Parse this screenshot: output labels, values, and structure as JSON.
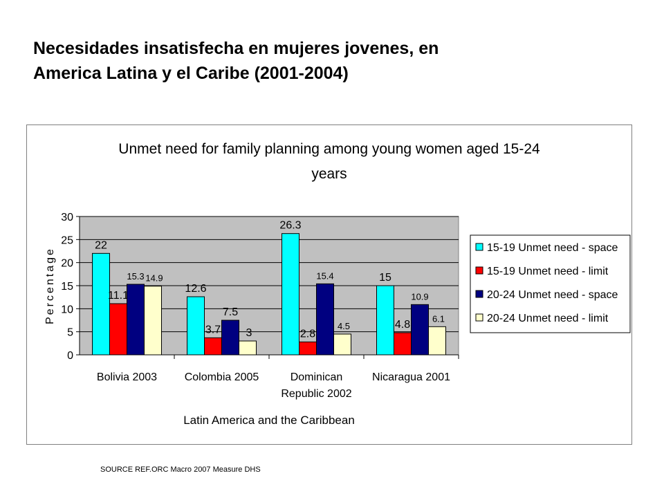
{
  "slide": {
    "title_line1": "Necesidades insatisfecha en mujeres jovenes, en",
    "title_line2": "America Latina y el Caribe (2001-2004)",
    "source": "SOURCE REF.ORC Macro 2007 Measure DHS"
  },
  "colors": {
    "plot_bg": "#c0c0c0",
    "series": [
      "#00ffff",
      "#ff0000",
      "#000080",
      "#ffffcc"
    ]
  },
  "chart_data": {
    "type": "bar",
    "title_line1": "Unmet need for family planning among young women aged 15-24",
    "title_line2": "years",
    "ylabel": "Percentage",
    "xlabel": "Latin America and the Caribbean",
    "ylim": [
      0,
      30
    ],
    "yticks": [
      0,
      5,
      10,
      15,
      20,
      25,
      30
    ],
    "grid": true,
    "legend_position": "right",
    "categories": [
      [
        "Bolivia 2003"
      ],
      [
        "Colombia 2005"
      ],
      [
        "Dominican",
        "Republic 2002"
      ],
      [
        "Nicaragua 2001"
      ]
    ],
    "series": [
      {
        "name": "15-19 Unmet need - space",
        "values": [
          22,
          12.6,
          26.3,
          15
        ]
      },
      {
        "name": "15-19 Unmet need - limit",
        "values": [
          11.1,
          3.7,
          2.8,
          4.8
        ]
      },
      {
        "name": "20-24 Unmet need - space",
        "values": [
          15.3,
          7.5,
          15.4,
          10.9
        ]
      },
      {
        "name": "20-24 Unmet need - limit",
        "values": [
          14.9,
          3,
          4.5,
          6.1
        ]
      }
    ]
  }
}
